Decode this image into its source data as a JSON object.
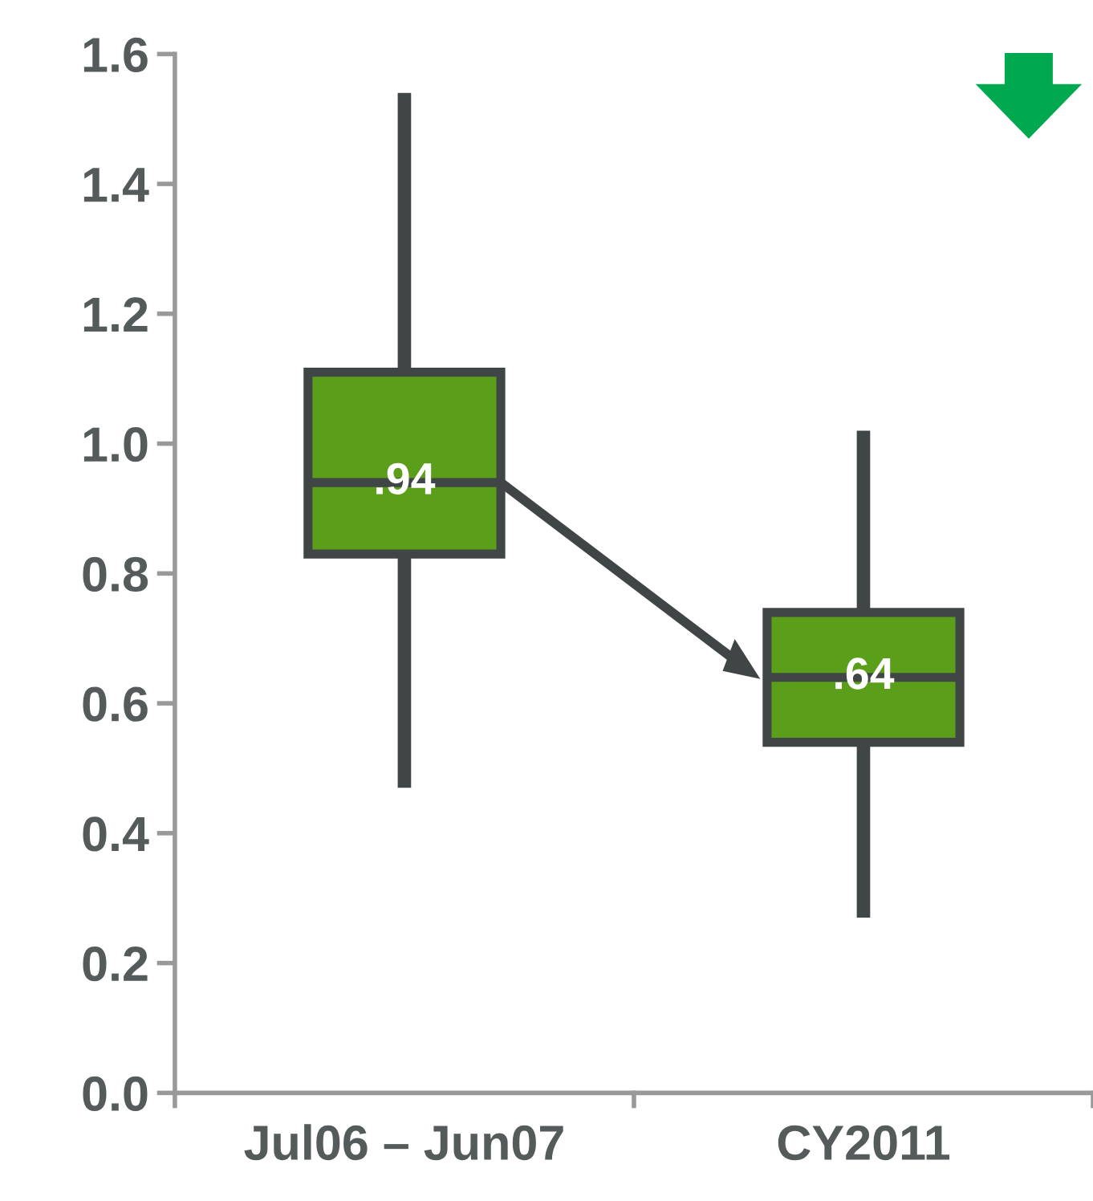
{
  "chart_data": {
    "type": "box",
    "categories": [
      "Jul06 – Jun07",
      "CY2011"
    ],
    "boxes": [
      {
        "low": 0.47,
        "q1": 0.83,
        "median": 0.94,
        "q3": 1.11,
        "high": 1.54
      },
      {
        "low": 0.27,
        "q1": 0.54,
        "median": 0.64,
        "q3": 0.74,
        "high": 1.02
      }
    ],
    "color": "#5a9e1a",
    "value_labels": [
      ".94",
      ".64"
    ],
    "ylim": [
      0,
      1.6
    ],
    "yticks": [
      {
        "value": 0,
        "label": "0.0"
      },
      {
        "value": 0.2,
        "label": "0.2"
      },
      {
        "value": 0.4,
        "label": "0.4"
      },
      {
        "value": 0.6,
        "label": "0.6"
      },
      {
        "value": 0.8,
        "label": "0.8"
      },
      {
        "value": 1.0,
        "label": "1.0"
      },
      {
        "value": 1.2,
        "label": "1.2"
      },
      {
        "value": 1.4,
        "label": "1.4"
      },
      {
        "value": 1.6,
        "label": "1.6"
      }
    ],
    "grid": false,
    "legend": false
  }
}
